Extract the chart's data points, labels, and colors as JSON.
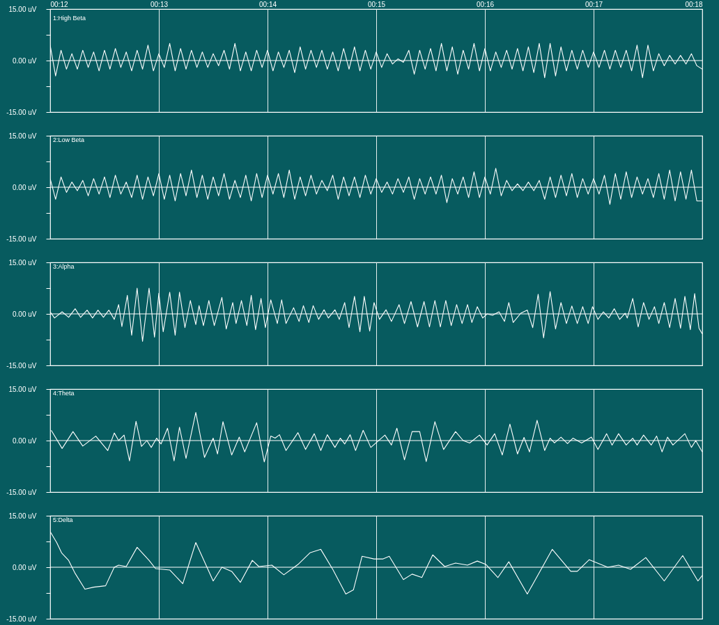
{
  "chart_data": [
    {
      "type": "line",
      "title": "1:High Beta",
      "xlim": [
        12,
        18
      ],
      "ylim": [
        -15,
        15
      ],
      "xticks": [
        {
          "value": 12,
          "label": "00:12"
        },
        {
          "value": 13,
          "label": "00:13"
        },
        {
          "value": 14,
          "label": "00:14"
        },
        {
          "value": 15,
          "label": "00:15"
        },
        {
          "value": 16,
          "label": "00:16"
        },
        {
          "value": 17,
          "label": "00:17"
        },
        {
          "value": 18,
          "label": "00:18"
        }
      ],
      "yticks": [
        {
          "value": 15,
          "label": "15.00 uV"
        },
        {
          "value": 7.5,
          "label": null
        },
        {
          "value": 0,
          "label": "0.00 uV"
        },
        {
          "value": -7.5,
          "label": null
        },
        {
          "value": -15,
          "label": "-15.00 uV"
        }
      ],
      "grid": "x",
      "ref_lines": [
        {
          "axis": "y",
          "value": 0
        }
      ],
      "x": [
        12,
        12.05,
        12.1,
        12.15,
        12.2,
        12.25,
        12.3,
        12.35,
        12.4,
        12.45,
        12.5,
        12.55,
        12.6,
        12.65,
        12.7,
        12.75,
        12.8,
        12.85,
        12.9,
        12.95,
        13,
        13.05,
        13.1,
        13.15,
        13.2,
        13.25,
        13.3,
        13.35,
        13.4,
        13.45,
        13.5,
        13.55,
        13.6,
        13.65,
        13.7,
        13.75,
        13.8,
        13.85,
        13.9,
        13.95,
        14,
        14.05,
        14.1,
        14.15,
        14.2,
        14.25,
        14.3,
        14.35,
        14.4,
        14.45,
        14.5,
        14.55,
        14.6,
        14.65,
        14.7,
        14.75,
        14.8,
        14.85,
        14.9,
        14.95,
        15,
        15.05,
        15.1,
        15.15,
        15.2,
        15.25,
        15.3,
        15.35,
        15.4,
        15.45,
        15.5,
        15.55,
        15.6,
        15.65,
        15.7,
        15.75,
        15.8,
        15.85,
        15.9,
        15.95,
        16,
        16.05,
        16.1,
        16.15,
        16.2,
        16.25,
        16.3,
        16.35,
        16.4,
        16.45,
        16.5,
        16.55,
        16.6,
        16.65,
        16.7,
        16.75,
        16.8,
        16.85,
        16.9,
        16.95,
        17,
        17.05,
        17.1,
        17.15,
        17.2,
        17.25,
        17.3,
        17.35,
        17.4,
        17.45,
        17.5,
        17.55,
        17.6,
        17.65,
        17.7,
        17.75,
        17.8,
        17.85,
        17.9,
        17.95,
        18
      ],
      "series": [
        {
          "color": "#ffffff",
          "values": [
            4.5,
            -4.5,
            3,
            -2.5,
            2,
            -2.5,
            3,
            -2,
            2.5,
            -3,
            3,
            -2.5,
            3.5,
            -2,
            2.5,
            -3,
            3,
            -2.5,
            4.5,
            -3,
            2,
            -2,
            5,
            -3,
            3.5,
            -2.5,
            3,
            -2,
            2.5,
            -2,
            2,
            -1.5,
            3,
            -2.5,
            5,
            -3,
            2.5,
            -3,
            3,
            -2,
            3,
            -3,
            2.5,
            -2,
            3,
            -3.5,
            4,
            -2.5,
            3,
            -2,
            3,
            -2.5,
            2.5,
            -3,
            3.5,
            -2.5,
            4,
            -3,
            3,
            -2.5,
            2.5,
            -2,
            2,
            -1,
            0.5,
            -0.5,
            3,
            -4,
            3,
            -2.5,
            3.5,
            -3,
            5,
            -3,
            4,
            -4,
            3,
            -2.5,
            5,
            -3,
            3.5,
            -3,
            2.5,
            -2,
            3,
            -2.5,
            3.5,
            -3,
            4,
            -3.5,
            5,
            -5,
            5,
            -4.5,
            4,
            -3,
            3,
            -2.5,
            3,
            -2,
            2.5,
            -2,
            3,
            -2.5,
            3,
            -2,
            3,
            -3,
            4.5,
            -5,
            4.5,
            -3,
            2,
            -1.5,
            1.5,
            -1,
            1.5,
            -1,
            2,
            -1.5,
            -2.5
          ]
        }
      ]
    },
    {
      "type": "line",
      "title": "2:Low Beta",
      "xlim": [
        12,
        18
      ],
      "ylim": [
        -15,
        15
      ],
      "tick_labels": "y",
      "xticks": [
        12,
        13,
        14,
        15,
        16,
        17,
        18
      ],
      "yticks": [
        {
          "value": 15,
          "label": "15.00 uV"
        },
        {
          "value": 7.5,
          "label": null
        },
        {
          "value": 0,
          "label": "0.00 uV"
        },
        {
          "value": -7.5,
          "label": null
        },
        {
          "value": -15,
          "label": "-15.00 uV"
        }
      ],
      "grid": "x",
      "ref_lines": [
        {
          "axis": "y",
          "value": 0
        }
      ],
      "x": [
        12,
        12.05,
        12.1,
        12.15,
        12.2,
        12.25,
        12.3,
        12.35,
        12.4,
        12.45,
        12.5,
        12.55,
        12.6,
        12.65,
        12.7,
        12.75,
        12.8,
        12.85,
        12.9,
        12.95,
        13,
        13.05,
        13.1,
        13.15,
        13.2,
        13.25,
        13.3,
        13.35,
        13.4,
        13.45,
        13.5,
        13.55,
        13.6,
        13.65,
        13.7,
        13.75,
        13.8,
        13.85,
        13.9,
        13.95,
        14,
        14.05,
        14.1,
        14.15,
        14.2,
        14.25,
        14.3,
        14.35,
        14.4,
        14.45,
        14.5,
        14.55,
        14.6,
        14.65,
        14.7,
        14.75,
        14.8,
        14.85,
        14.9,
        14.95,
        15,
        15.05,
        15.1,
        15.15,
        15.2,
        15.25,
        15.3,
        15.35,
        15.4,
        15.45,
        15.5,
        15.55,
        15.6,
        15.65,
        15.7,
        15.75,
        15.8,
        15.85,
        15.9,
        15.95,
        16,
        16.05,
        16.1,
        16.15,
        16.2,
        16.25,
        16.3,
        16.35,
        16.4,
        16.45,
        16.5,
        16.55,
        16.6,
        16.65,
        16.7,
        16.75,
        16.8,
        16.85,
        16.9,
        16.95,
        17,
        17.05,
        17.1,
        17.15,
        17.2,
        17.25,
        17.3,
        17.35,
        17.4,
        17.45,
        17.5,
        17.55,
        17.6,
        17.65,
        17.7,
        17.75,
        17.8,
        17.85,
        17.9,
        17.95,
        18
      ],
      "series": [
        {
          "color": "#ffffff",
          "values": [
            2.5,
            -3.5,
            3,
            -1.5,
            1.5,
            -1,
            2,
            -2.5,
            2.5,
            -2,
            3,
            -3,
            3.5,
            -2,
            1.5,
            -3,
            3.5,
            -3.5,
            3,
            -2.5,
            4,
            -3.5,
            3.5,
            -4,
            4,
            -2.5,
            5,
            -3,
            3.5,
            -3.5,
            3,
            -2.5,
            4,
            -3.5,
            2,
            -3,
            3.5,
            -4,
            4,
            -3,
            3.5,
            -2,
            4,
            -3,
            5,
            -3.5,
            3,
            -2.5,
            3.5,
            -2,
            2,
            -1,
            3.5,
            -3.5,
            3,
            -2.5,
            3,
            -3,
            3.5,
            -2,
            2.5,
            -1.5,
            1.5,
            -2,
            2.5,
            -1.5,
            3,
            -3.5,
            2.5,
            -2,
            3,
            -2,
            3.5,
            -4.5,
            2.5,
            -2,
            3,
            -3,
            4.5,
            -3,
            3,
            -2,
            5.5,
            -2.5,
            2,
            -1,
            1,
            -1,
            1.5,
            -1,
            2,
            -3.5,
            3,
            -3,
            3.5,
            -2.5,
            4,
            -3,
            2.5,
            -2,
            2.5,
            -2,
            3.5,
            -5,
            4,
            -3.5,
            4.5,
            -3,
            3,
            -2,
            2.5,
            -3,
            4,
            -3.5,
            5,
            -4,
            4.5,
            -3.5,
            5,
            -4,
            -4
          ]
        }
      ]
    },
    {
      "type": "line",
      "title": "3:Alpha",
      "xlim": [
        12,
        18
      ],
      "ylim": [
        -15,
        15
      ],
      "tick_labels": "y",
      "xticks": [
        12,
        13,
        14,
        15,
        16,
        17,
        18
      ],
      "yticks": [
        {
          "value": 15,
          "label": "15.00 uV"
        },
        {
          "value": 7.5,
          "label": null
        },
        {
          "value": 0,
          "label": "0.00 uV"
        },
        {
          "value": -7.5,
          "label": null
        },
        {
          "value": -15,
          "label": "-15.00 uV"
        }
      ],
      "grid": "x",
      "ref_lines": [
        {
          "axis": "y",
          "value": 0
        }
      ],
      "x": [
        12,
        12.04,
        12.11,
        12.17,
        12.23,
        12.28,
        12.34,
        12.39,
        12.44,
        12.49,
        12.54,
        12.59,
        12.63,
        12.66,
        12.71,
        12.75,
        12.8,
        12.85,
        12.91,
        12.96,
        13,
        13.04,
        13.1,
        13.15,
        13.19,
        13.24,
        13.29,
        13.34,
        13.37,
        13.41,
        13.46,
        13.51,
        13.58,
        13.62,
        13.68,
        13.71,
        13.76,
        13.81,
        13.85,
        13.89,
        13.94,
        13.98,
        14.03,
        14.09,
        14.13,
        14.17,
        14.24,
        14.29,
        14.33,
        14.38,
        14.42,
        14.47,
        14.52,
        14.56,
        14.62,
        14.66,
        14.71,
        14.75,
        14.8,
        14.85,
        14.89,
        14.94,
        14.98,
        15.03,
        15.09,
        15.14,
        15.21,
        15.26,
        15.32,
        15.38,
        15.44,
        15.49,
        15.54,
        15.59,
        15.64,
        15.69,
        15.74,
        15.79,
        15.84,
        15.88,
        15.93,
        15.98,
        16.02,
        16.07,
        16.13,
        16.18,
        16.22,
        16.26,
        16.33,
        16.39,
        16.44,
        16.49,
        16.54,
        16.6,
        16.65,
        16.7,
        16.75,
        16.8,
        16.85,
        16.9,
        16.95,
        16.99,
        17.04,
        17.09,
        17.14,
        17.19,
        17.24,
        17.29,
        17.31,
        17.36,
        17.41,
        17.46,
        17.51,
        17.56,
        17.6,
        17.65,
        17.7,
        17.75,
        17.8,
        17.84,
        17.89,
        17.93,
        17.97,
        18
      ],
      "series": [
        {
          "color": "#ffffff",
          "values": [
            0.6,
            -1.2,
            0.6,
            -1,
            1.5,
            -1,
            1.1,
            -1.2,
            1.1,
            -1,
            1.1,
            -1.6,
            2.7,
            -3.7,
            5.4,
            -6.2,
            7.5,
            -8,
            7.5,
            -6.8,
            6,
            -5.2,
            6.3,
            -6.2,
            6.3,
            -4,
            3.9,
            -3.1,
            2.4,
            -3.4,
            3.9,
            -3.4,
            4.8,
            -4.4,
            3.3,
            -2.8,
            3.9,
            -3.4,
            5.4,
            -4.6,
            4.5,
            -4,
            4.1,
            -2.8,
            4.1,
            -2.8,
            1.8,
            -2.2,
            2.4,
            -2.5,
            2.4,
            -1.6,
            1.2,
            -1.2,
            1.2,
            -1.6,
            3.3,
            -4,
            5.1,
            -5.2,
            5.1,
            -5,
            3.3,
            -1.6,
            1.2,
            -2.2,
            2.7,
            -2.8,
            3.6,
            -3.8,
            3.6,
            -3.8,
            3.9,
            -3.8,
            3.9,
            -3.4,
            2.7,
            -2.8,
            2.7,
            -2.5,
            2.1,
            -1.2,
            0,
            -0.4,
            0.6,
            -2.2,
            3.3,
            -2.5,
            0.2,
            1.1,
            -4,
            5.7,
            -7,
            6.5,
            -4.4,
            3.3,
            -2.8,
            2.3,
            -2.8,
            2.1,
            -2.8,
            2.1,
            -1.6,
            0.6,
            -1.2,
            1.5,
            -1.6,
            0.2,
            -1.2,
            4.5,
            -3.8,
            3.3,
            -1.6,
            2.1,
            -2.8,
            3.3,
            -4,
            4.5,
            -4.2,
            5.1,
            -4.6,
            5.9,
            -4.2,
            -5.8
          ]
        }
      ]
    },
    {
      "type": "line",
      "title": "4:Theta",
      "xlim": [
        12,
        18
      ],
      "ylim": [
        -15,
        15
      ],
      "tick_labels": "y",
      "xticks": [
        12,
        13,
        14,
        15,
        16,
        17,
        18
      ],
      "yticks": [
        {
          "value": 15,
          "label": "15.00 uV"
        },
        {
          "value": 7.5,
          "label": null
        },
        {
          "value": 0,
          "label": "0.00 uV"
        },
        {
          "value": -7.5,
          "label": null
        },
        {
          "value": -15,
          "label": "-15.00 uV"
        }
      ],
      "grid": "x",
      "ref_lines": [
        {
          "axis": "y",
          "value": 0
        }
      ],
      "x": [
        12.01,
        12.11,
        12.21,
        12.3,
        12.42,
        12.53,
        12.59,
        12.63,
        12.68,
        12.73,
        12.79,
        12.84,
        12.89,
        12.93,
        12.98,
        13.02,
        13.08,
        13.14,
        13.19,
        13.25,
        13.34,
        13.42,
        13.5,
        13.54,
        13.59,
        13.67,
        13.74,
        13.79,
        13.9,
        13.97,
        14.03,
        14.07,
        14.11,
        14.17,
        14.28,
        14.35,
        14.43,
        14.49,
        14.55,
        14.62,
        14.67,
        14.71,
        14.76,
        14.81,
        14.88,
        14.95,
        15.08,
        15.14,
        15.19,
        15.26,
        15.33,
        15.4,
        15.46,
        15.54,
        15.62,
        15.73,
        15.8,
        15.86,
        15.95,
        16.02,
        16.09,
        16.16,
        16.23,
        16.3,
        16.36,
        16.41,
        16.48,
        16.55,
        16.6,
        16.64,
        16.7,
        16.76,
        16.81,
        16.89,
        16.98,
        17.04,
        17.12,
        17.17,
        17.23,
        17.3,
        17.36,
        17.4,
        17.46,
        17.53,
        17.58,
        17.63,
        17.68,
        17.73,
        17.84,
        17.9,
        17.94,
        18
      ],
      "series": [
        {
          "color": "#ffffff",
          "values": [
            3,
            -2.3,
            2.6,
            -1.6,
            1.3,
            -2.9,
            2.2,
            0,
            1.6,
            -5.9,
            5.6,
            -1.7,
            0,
            -2,
            0.7,
            -1,
            3.6,
            -5.9,
            3.9,
            -5.2,
            8.2,
            -4.9,
            0.7,
            -3.9,
            5.5,
            -4.2,
            1,
            -3.3,
            5.2,
            -6.2,
            1.3,
            0.7,
            1.7,
            -2.9,
            2.3,
            -2.6,
            2,
            -2.9,
            1.7,
            -2,
            0.7,
            -1,
            1.7,
            -2.9,
            3,
            -2,
            1.6,
            -1.3,
            3.6,
            -5.6,
            2.6,
            2.6,
            -6.1,
            5.5,
            -2.6,
            2.6,
            0,
            -0.7,
            1.6,
            -1.3,
            2,
            -4.2,
            4.8,
            -3.9,
            0.9,
            -3.3,
            5.9,
            -2.9,
            0.7,
            -0.7,
            1,
            -0.9,
            0.7,
            -0.7,
            1,
            -2.6,
            2,
            -1.3,
            2,
            -1.3,
            0.7,
            -1.3,
            1.6,
            -1.3,
            1.3,
            -3.3,
            1,
            -1.3,
            2,
            -2,
            0,
            -3.3
          ]
        }
      ]
    },
    {
      "type": "line",
      "title": "5:Delta",
      "xlim": [
        12,
        18
      ],
      "ylim": [
        -15,
        15
      ],
      "tick_labels": "y",
      "xticks": [
        12,
        13,
        14,
        15,
        16,
        17,
        18
      ],
      "yticks": [
        {
          "value": 15,
          "label": "15.00 uV"
        },
        {
          "value": 7.5,
          "label": null
        },
        {
          "value": 0,
          "label": "0.00 uV"
        },
        {
          "value": -7.5,
          "label": null
        },
        {
          "value": -15,
          "label": "-15.00 uV"
        }
      ],
      "grid": "x",
      "ref_lines": [
        {
          "axis": "y",
          "value": 0
        }
      ],
      "x": [
        12,
        12.06,
        12.105,
        12.17,
        12.23,
        12.32,
        12.4,
        12.51,
        12.59,
        12.63,
        12.7,
        12.8,
        12.91,
        12.97,
        13.1,
        13.22,
        13.34,
        13.5,
        13.58,
        13.67,
        13.75,
        13.86,
        13.92,
        14.04,
        14.15,
        14.28,
        14.39,
        14.49,
        14.6,
        14.72,
        14.79,
        14.87,
        14.98,
        15.06,
        15.12,
        15.25,
        15.33,
        15.42,
        15.52,
        15.63,
        15.73,
        15.84,
        15.93,
        16.01,
        16.12,
        16.22,
        16.39,
        16.62,
        16.79,
        16.85,
        16.96,
        17.13,
        17.23,
        17.34,
        17.48,
        17.65,
        17.82,
        17.96,
        18
      ],
      "series": [
        {
          "color": "#ffffff",
          "values": [
            10.4,
            7.2,
            4.2,
            2,
            -1.8,
            -6.4,
            -5.8,
            -5.4,
            0,
            0.6,
            0.2,
            5.8,
            2,
            -0.4,
            -0.8,
            -4.8,
            7.2,
            -4,
            0,
            -1.2,
            -4.4,
            2,
            0.2,
            0.6,
            -2.2,
            0.8,
            4.2,
            5.2,
            -0.6,
            -7.8,
            -6.6,
            3.2,
            2.4,
            2.4,
            3.2,
            -3.6,
            -2,
            -3,
            3.6,
            0.2,
            1.2,
            0.6,
            1.8,
            0.8,
            -3,
            1.6,
            -7.8,
            5.2,
            -1.2,
            -1.2,
            2.2,
            0,
            0.6,
            -0.6,
            2.8,
            -4,
            3.4,
            -4,
            -2.4
          ]
        }
      ]
    }
  ]
}
